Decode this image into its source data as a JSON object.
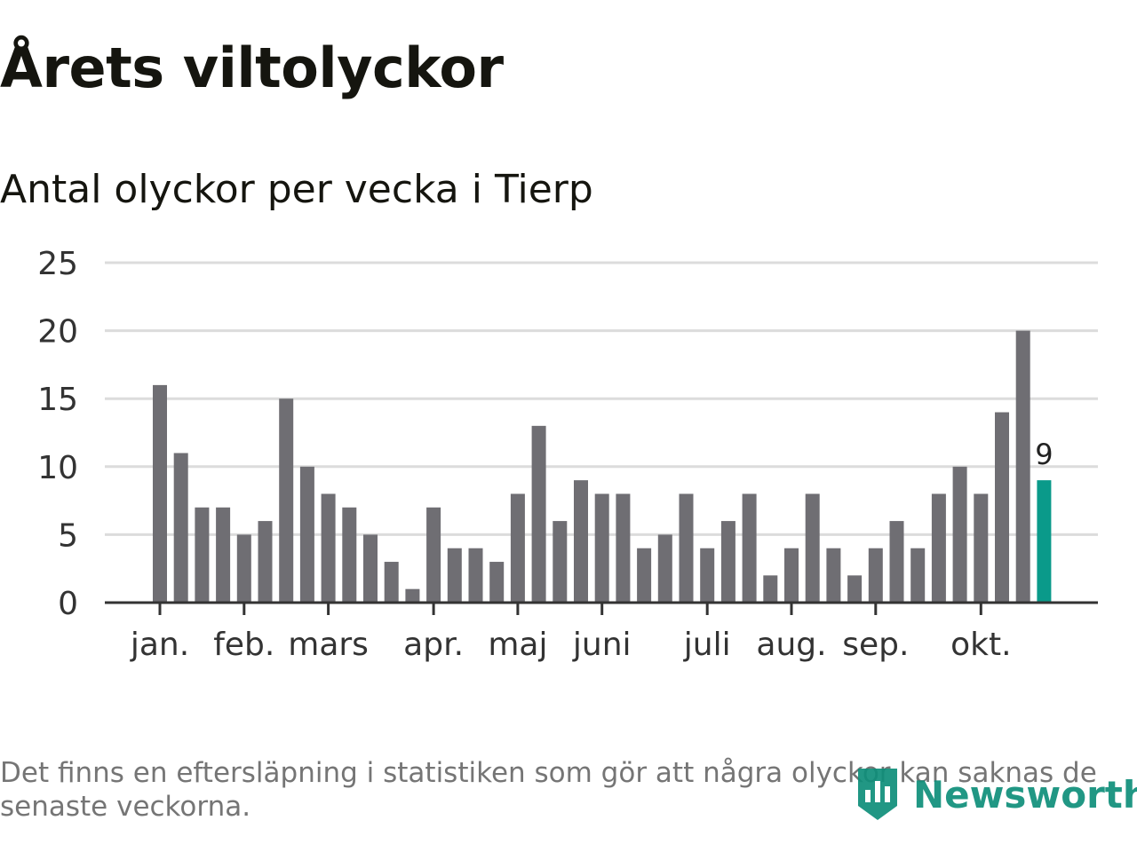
{
  "page": {
    "title": "Årets viltolyckor",
    "subtitle": "Antal olyckor per vecka i Tierp",
    "footnote": "Det finns en eftersläpning i statistiken som gör att några olyckor kan saknas de senaste veckorna.",
    "logo_text": "Newsworthy"
  },
  "colors": {
    "bar": "#6f6e73",
    "highlight": "#0a9a8a",
    "grid": "#dcdcdc",
    "axis": "#333333",
    "tick_text": "#333333"
  },
  "chart_data": {
    "type": "bar",
    "title": "Antal olyckor per vecka i Tierp",
    "xlabel": "",
    "ylabel": "",
    "ylim": [
      0,
      25
    ],
    "yticks": [
      0,
      5,
      10,
      15,
      20,
      25
    ],
    "grid": true,
    "weeks": [
      1,
      2,
      3,
      4,
      5,
      6,
      7,
      8,
      9,
      10,
      11,
      12,
      13,
      14,
      15,
      16,
      17,
      18,
      19,
      20,
      21,
      22,
      23,
      24,
      25,
      26,
      27,
      28,
      29,
      30,
      31,
      32,
      33,
      34,
      35,
      36,
      37,
      38,
      39,
      40,
      41,
      42,
      43
    ],
    "values": [
      16,
      11,
      7,
      7,
      5,
      6,
      15,
      10,
      8,
      7,
      5,
      3,
      1,
      7,
      4,
      4,
      3,
      8,
      13,
      6,
      9,
      8,
      8,
      4,
      5,
      8,
      4,
      6,
      8,
      2,
      4,
      8,
      4,
      2,
      4,
      6,
      4,
      8,
      10,
      8,
      14,
      20,
      9
    ],
    "highlight_index": 42,
    "highlight_label": "9",
    "month_ticks": [
      {
        "label": "jan.",
        "week": 1
      },
      {
        "label": "feb.",
        "week": 5
      },
      {
        "label": "mars",
        "week": 9
      },
      {
        "label": "apr.",
        "week": 14
      },
      {
        "label": "maj",
        "week": 18
      },
      {
        "label": "juni",
        "week": 22
      },
      {
        "label": "juli",
        "week": 27
      },
      {
        "label": "aug.",
        "week": 31
      },
      {
        "label": "sep.",
        "week": 35
      },
      {
        "label": "okt.",
        "week": 40
      }
    ]
  }
}
